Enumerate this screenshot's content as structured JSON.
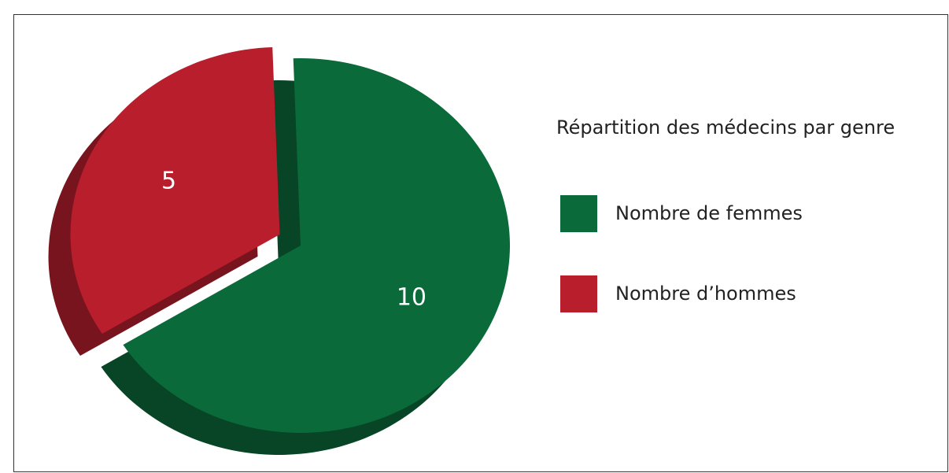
{
  "chart_data": {
    "type": "pie",
    "title": "Répartition des médecins par genre",
    "categories": [
      "Nombre de femmes",
      "Nombre d’hommes"
    ],
    "values": [
      10,
      5
    ],
    "colors": [
      "#0a6a3a",
      "#b91e2d"
    ],
    "legend": "right"
  }
}
